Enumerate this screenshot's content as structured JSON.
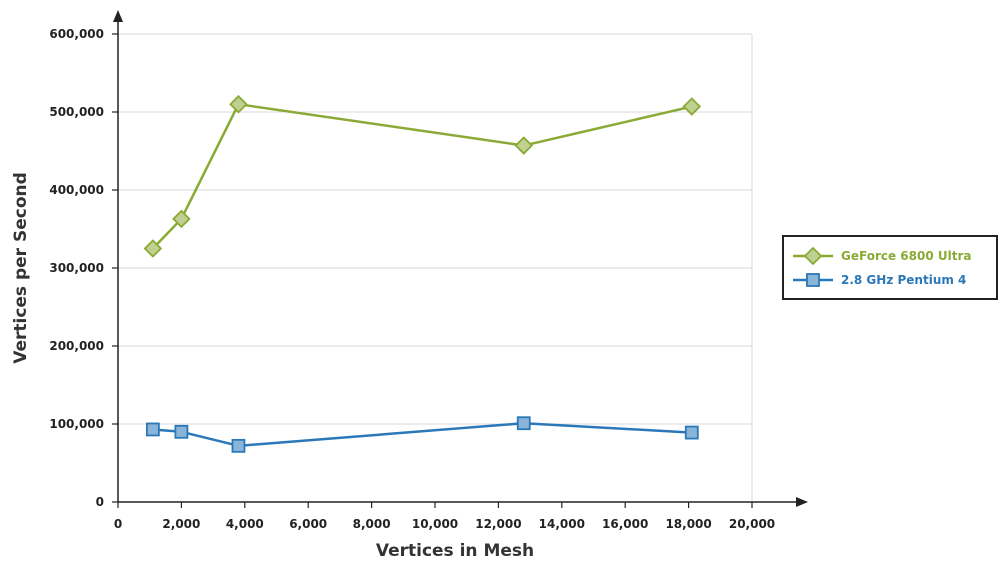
{
  "chart_data": {
    "type": "line",
    "xlabel": "Vertices in Mesh",
    "ylabel": "Vertices per Second",
    "xlim": [
      0,
      20000
    ],
    "ylim": [
      0,
      600000
    ],
    "x_ticks": [
      "0",
      "2,000",
      "4,000",
      "6,000",
      "8,000",
      "10,000",
      "12,000",
      "14,000",
      "16,000",
      "18,000",
      "20,000"
    ],
    "y_ticks": [
      "0",
      "100,000",
      "200,000",
      "300,000",
      "400,000",
      "500,000",
      "600,000"
    ],
    "grid": true,
    "legend_position": "right",
    "series": [
      {
        "name": "GeForce 6800 Ultra",
        "color": "#8aaa35",
        "marker": "diamond",
        "x": [
          1100,
          2000,
          3800,
          12800,
          18100
        ],
        "y": [
          325000,
          363000,
          510000,
          457000,
          507000
        ]
      },
      {
        "name": "2.8 GHz Pentium 4",
        "color": "#2a78b8",
        "marker": "square",
        "x": [
          1100,
          2000,
          3800,
          12800,
          18100
        ],
        "y": [
          93000,
          90000,
          72000,
          101000,
          89000
        ]
      }
    ]
  }
}
